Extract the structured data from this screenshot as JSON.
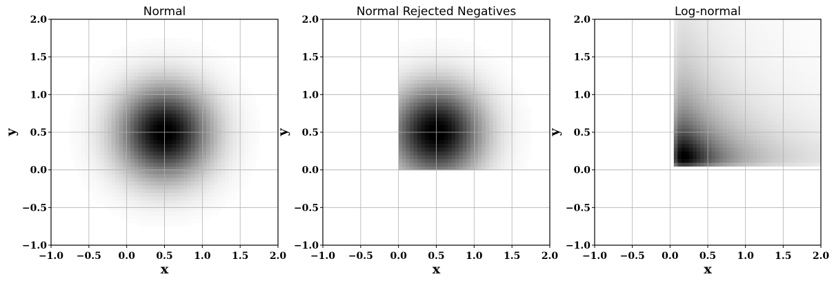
{
  "chart_data": [
    {
      "type": "heatmap",
      "title": "Normal",
      "xlabel": "x",
      "ylabel": "y",
      "xlim": [
        -1.0,
        2.0
      ],
      "ylim": [
        -1.0,
        2.0
      ],
      "xticks": [
        "−1.0",
        "−0.5",
        "0.0",
        "0.5",
        "1.0",
        "1.5",
        "2.0"
      ],
      "yticks": [
        "−1.0",
        "−0.5",
        "0.0",
        "0.5",
        "1.0",
        "1.5",
        "2.0"
      ],
      "grid": true,
      "colormap": "greys",
      "distribution": {
        "kind": "normal",
        "mean": [
          0.5,
          0.5
        ],
        "std": [
          0.42,
          0.42
        ],
        "reject_negative": false
      }
    },
    {
      "type": "heatmap",
      "title": "Normal Rejected Negatives",
      "xlabel": "x",
      "ylabel": "y",
      "xlim": [
        -1.0,
        2.0
      ],
      "ylim": [
        -1.0,
        2.0
      ],
      "xticks": [
        "−1.0",
        "−0.5",
        "0.0",
        "0.5",
        "1.0",
        "1.5",
        "2.0"
      ],
      "yticks": [
        "−1.0",
        "−0.5",
        "0.0",
        "0.5",
        "1.0",
        "1.5",
        "2.0"
      ],
      "grid": true,
      "colormap": "greys",
      "distribution": {
        "kind": "normal",
        "mean": [
          0.5,
          0.5
        ],
        "std": [
          0.42,
          0.42
        ],
        "reject_negative": true
      }
    },
    {
      "type": "heatmap",
      "title": "Log-normal",
      "xlabel": "x",
      "ylabel": "y",
      "xlim": [
        -1.0,
        2.0
      ],
      "ylim": [
        -1.0,
        2.0
      ],
      "xticks": [
        "−1.0",
        "−0.5",
        "0.0",
        "0.5",
        "1.0",
        "1.5",
        "2.0"
      ],
      "yticks": [
        "−1.0",
        "−0.5",
        "0.0",
        "0.5",
        "1.0",
        "1.5",
        "2.0"
      ],
      "grid": true,
      "colormap": "greys",
      "distribution": {
        "kind": "lognormal",
        "mode": [
          0.18,
          0.18
        ],
        "sigma": 0.85,
        "reject_negative": true
      }
    }
  ],
  "colors": {
    "background": "#ffffff",
    "grid": "#b0b0b0",
    "axis": "#000000"
  }
}
